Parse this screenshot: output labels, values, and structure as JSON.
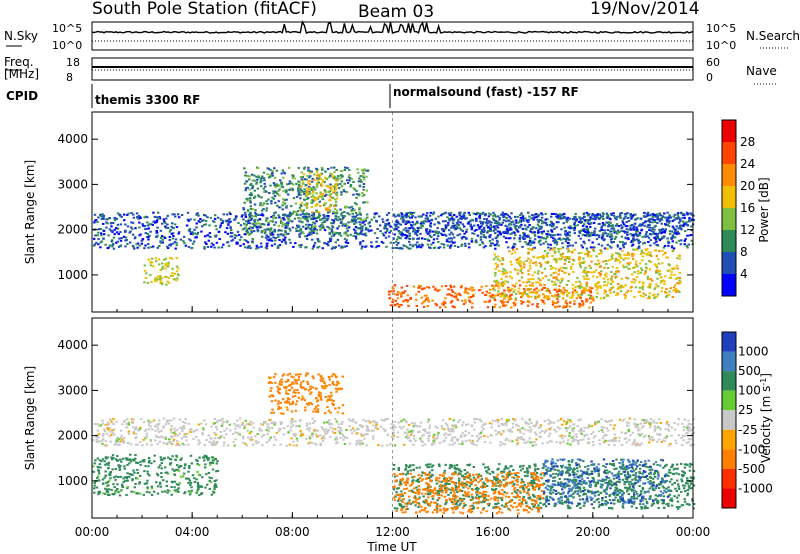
{
  "header": {
    "title": "South Pole Station (fitACF)",
    "beam": "Beam 03",
    "date": "19/Nov/2014"
  },
  "sky_panel": {
    "left_label": "N.Sky",
    "left_ticks": [
      "10^5",
      "10^0"
    ],
    "right_label": "N.Search",
    "right_ticks": [
      "10^5",
      "10^0"
    ]
  },
  "freq_panel": {
    "left_label_1": "Freq.",
    "left_label_2": "[MHz]",
    "left_ticks": [
      "18",
      "8"
    ],
    "right_label": "Nave",
    "right_ticks": [
      "60",
      "0"
    ]
  },
  "cpid": {
    "label": "CPID",
    "segments": [
      {
        "text": "themis 3300 RF",
        "start_hour": 0
      },
      {
        "text": "normalsound (fast) -157 RF",
        "start_hour": 12
      }
    ]
  },
  "x_axis": {
    "label": "Time UT",
    "ticks": [
      "00:00",
      "04:00",
      "08:00",
      "12:00",
      "16:00",
      "20:00",
      "00:00"
    ],
    "range_hours": [
      0,
      24
    ]
  },
  "y_axis": {
    "label": "Slant Range [km]",
    "ticks": [
      "1000",
      "2000",
      "3000",
      "4000"
    ],
    "range_km": [
      180,
      4600
    ]
  },
  "power_scale": {
    "label": "Power [dB]",
    "ticks": [
      "4",
      "8",
      "12",
      "16",
      "20",
      "24",
      "28"
    ],
    "colors": [
      "#0000ff",
      "#1f4fb4",
      "#2e8b57",
      "#7fbf3f",
      "#f0c000",
      "#ff8c00",
      "#ff4500",
      "#ee0000"
    ]
  },
  "velocity_scale": {
    "label": "Velocity [m s^-1]",
    "ticks": [
      "1000",
      "500",
      "100",
      "25",
      "-25",
      "-100",
      "-500",
      "-1000"
    ],
    "colors": [
      "#1f3fbf",
      "#3f7fbf",
      "#2e8b57",
      "#66cc33",
      "#c8c8c8",
      "#ffa500",
      "#ff7f00",
      "#ff3000",
      "#ee0000"
    ]
  },
  "chart_data": {
    "type": "heatmap",
    "title": "South Pole Station (fitACF)",
    "x": {
      "label": "Time UT",
      "range": [
        0,
        24
      ],
      "unit": "hours"
    },
    "y": {
      "label": "Slant Range [km]",
      "range": [
        180,
        4600
      ]
    },
    "panels": [
      {
        "name": "Power [dB]",
        "scatter_regions": [
          {
            "x0": 0,
            "x1": 24,
            "y0": 1600,
            "y1": 2400,
            "value": 6
          },
          {
            "x0": 2,
            "x1": 3.5,
            "y0": 800,
            "y1": 1400,
            "value": 16
          },
          {
            "x0": 6,
            "x1": 11,
            "y0": 1900,
            "y1": 3400,
            "value": 10
          },
          {
            "x0": 8.3,
            "x1": 9.8,
            "y0": 2400,
            "y1": 3300,
            "value": 18
          },
          {
            "x0": 11.8,
            "x1": 20,
            "y0": 300,
            "y1": 800,
            "value": 24
          },
          {
            "x0": 16,
            "x1": 23.5,
            "y0": 500,
            "y1": 1600,
            "value": 18
          },
          {
            "x0": 12,
            "x1": 24,
            "y0": 1800,
            "y1": 2400,
            "value": 6
          }
        ]
      },
      {
        "name": "Velocity [m s^-1]",
        "scatter_regions": [
          {
            "x0": 0,
            "x1": 24,
            "y0": 1800,
            "y1": 2400,
            "value": 0
          },
          {
            "x0": 0,
            "x1": 5,
            "y0": 700,
            "y1": 1600,
            "value": 200
          },
          {
            "x0": 7,
            "x1": 10,
            "y0": 2500,
            "y1": 3400,
            "value": -200
          },
          {
            "x0": 12,
            "x1": 24,
            "y0": 400,
            "y1": 1400,
            "value": 300
          },
          {
            "x0": 12,
            "x1": 18,
            "y0": 300,
            "y1": 1200,
            "value": -300
          },
          {
            "x0": 18,
            "x1": 23,
            "y0": 500,
            "y1": 1500,
            "value": 800
          }
        ]
      }
    ]
  }
}
